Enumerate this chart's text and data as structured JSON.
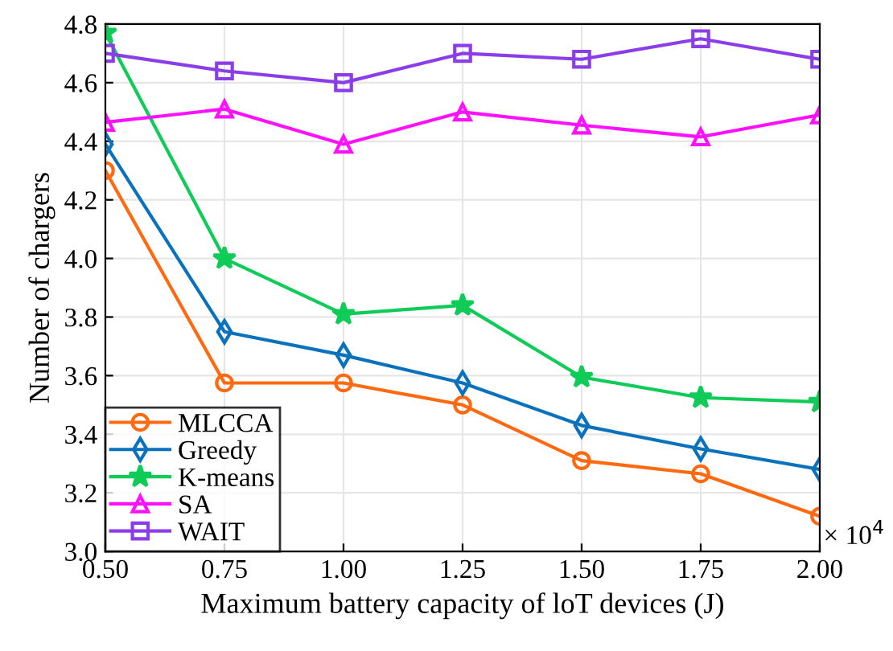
{
  "chart_data": {
    "type": "line",
    "xlabel": "Maximum battery capacity of loT devices (J)",
    "ylabel": "Number of chargers",
    "x": [
      0.5,
      0.75,
      1.0,
      1.25,
      1.5,
      1.75,
      2.0
    ],
    "series": [
      {
        "name": "MLCCA",
        "color": "#ff6a10",
        "marker": "circle",
        "values": [
          4.3,
          3.575,
          3.575,
          3.5,
          3.31,
          3.265,
          3.12
        ]
      },
      {
        "name": "Greedy",
        "color": "#0a72bd",
        "marker": "diamond",
        "values": [
          4.39,
          3.75,
          3.67,
          3.575,
          3.43,
          3.35,
          3.28
        ]
      },
      {
        "name": "K-means",
        "color": "#0fcb58",
        "marker": "star",
        "values": [
          4.77,
          4.0,
          3.81,
          3.84,
          3.595,
          3.525,
          3.51
        ]
      },
      {
        "name": "SA",
        "color": "#ff10ff",
        "marker": "triangle",
        "values": [
          4.465,
          4.51,
          4.39,
          4.5,
          4.455,
          4.415,
          4.49
        ]
      },
      {
        "name": "WAIT",
        "color": "#8a3de8",
        "marker": "square",
        "values": [
          4.7,
          4.64,
          4.6,
          4.7,
          4.68,
          4.75,
          4.68
        ]
      }
    ],
    "xlim": [
      0.5,
      2.0
    ],
    "xticks": [
      {
        "value": 0.5,
        "label": "0.50"
      },
      {
        "value": 0.75,
        "label": "0.75"
      },
      {
        "value": 1.0,
        "label": "1.00"
      },
      {
        "value": 1.25,
        "label": "1.25"
      },
      {
        "value": 1.5,
        "label": "1.50"
      },
      {
        "value": 1.75,
        "label": "1.75"
      },
      {
        "value": 2.0,
        "label": "2.00"
      }
    ],
    "ylim": [
      3.0,
      4.8
    ],
    "yticks": [
      {
        "value": 3.0,
        "label": "3.0"
      },
      {
        "value": 3.2,
        "label": "3.2"
      },
      {
        "value": 3.4,
        "label": "3.4"
      },
      {
        "value": 3.6,
        "label": "3.6"
      },
      {
        "value": 3.8,
        "label": "3.8"
      },
      {
        "value": 4.0,
        "label": "4.0"
      },
      {
        "value": 4.2,
        "label": "4.2"
      },
      {
        "value": 4.4,
        "label": "4.4"
      },
      {
        "value": 4.6,
        "label": "4.6"
      },
      {
        "value": 4.8,
        "label": "4.8"
      }
    ],
    "annotations": [
      "× 10$^{4}$"
    ],
    "grid": true,
    "legend": "bottom left",
    "line_style": "solid"
  }
}
